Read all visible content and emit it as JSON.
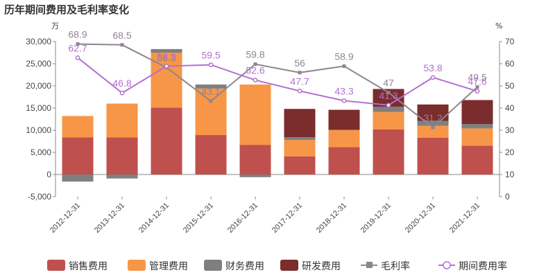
{
  "chart_data": {
    "type": "bar",
    "title": "历年期间费用及毛利率变化",
    "left_unit": "万",
    "right_unit": "%",
    "categories": [
      "2012-12-31",
      "2013-12-31",
      "2014-12-31",
      "2015-12-31",
      "2016-12-31",
      "2017-12-31",
      "2018-12-31",
      "2019-12-31",
      "2020-12-31",
      "2021-12-31"
    ],
    "ylim": [
      -5000,
      30000
    ],
    "y_ticks": [
      "-5,000",
      "0",
      "5,000",
      "10,000",
      "15,000",
      "20,000",
      "25,000",
      "30,000"
    ],
    "y2lim": [
      0,
      70
    ],
    "y2_ticks": [
      "0",
      "10",
      "20",
      "30",
      "40",
      "50",
      "60",
      "70"
    ],
    "stacked": true,
    "grid": false,
    "legend_position": "bottom",
    "series": [
      {
        "name": "销售费用",
        "kind": "bar",
        "axis": "left",
        "color": "#c0504d",
        "values": [
          8400,
          8400,
          15100,
          8900,
          6700,
          4100,
          6200,
          10200,
          8300,
          6500
        ]
      },
      {
        "name": "管理费用",
        "kind": "bar",
        "axis": "left",
        "color": "#f79646",
        "values": [
          4800,
          7600,
          12400,
          10500,
          13600,
          3700,
          3800,
          3900,
          2700,
          3900
        ]
      },
      {
        "name": "财务费用",
        "kind": "bar",
        "axis": "left",
        "color": "#7f7f7f",
        "values": [
          -1600,
          -900,
          800,
          900,
          -600,
          600,
          100,
          1200,
          1100,
          1000
        ]
      },
      {
        "name": "研发费用",
        "kind": "bar",
        "axis": "left",
        "color": "#7b2c2c",
        "values": [
          0,
          0,
          0,
          0,
          0,
          6400,
          4500,
          4000,
          3700,
          5400
        ]
      },
      {
        "name": "毛利率",
        "kind": "line",
        "axis": "right",
        "color": "#8e8590",
        "marker": "square",
        "values": [
          68.9,
          68.5,
          58.3,
          43.1,
          59.8,
          56,
          58.9,
          47,
          31.2,
          49.5
        ],
        "labels": [
          "68.9",
          "68.5",
          "58.3",
          "43.1",
          "59.8",
          "56",
          "58.9",
          "47",
          "31.2",
          "49.5"
        ]
      },
      {
        "name": "期间费用率",
        "kind": "line",
        "axis": "right",
        "color": "#b36fd0",
        "marker": "circle",
        "values": [
          62.7,
          46.8,
          58.9,
          59.5,
          52.6,
          47.7,
          43.3,
          41.3,
          53.8,
          47.6
        ],
        "labels": [
          "62.7",
          "46.8",
          "58.9",
          "59.5",
          "52.6",
          "47.7",
          "43.3",
          "41.3",
          "53.8",
          "47.6"
        ]
      }
    ]
  }
}
